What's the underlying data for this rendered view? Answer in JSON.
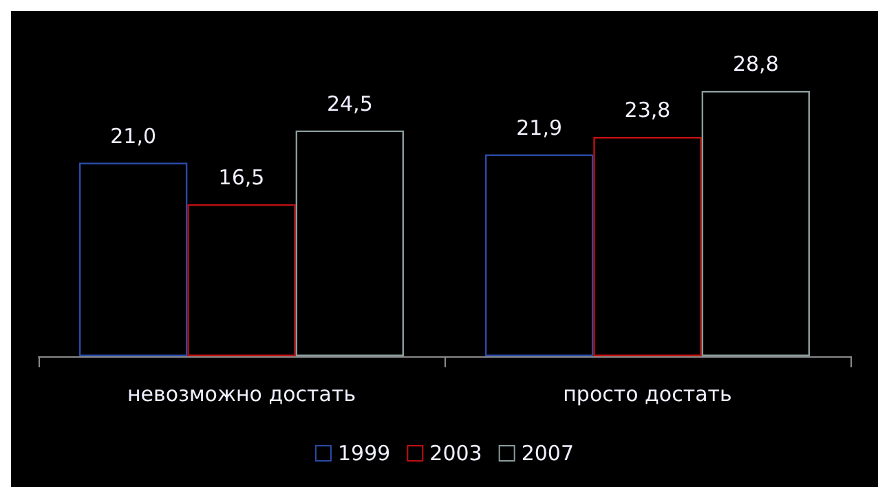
{
  "chart_data": {
    "type": "bar",
    "categories": [
      "невозможно достать",
      "просто достать"
    ],
    "series": [
      {
        "name": "1999",
        "color": "#2a4aa8",
        "values": [
          21.0,
          21.9
        ],
        "value_labels": [
          "21,0",
          "21,9"
        ]
      },
      {
        "name": "2003",
        "color": "#c01010",
        "values": [
          16.5,
          23.8
        ],
        "value_labels": [
          "16,5",
          "23,8"
        ]
      },
      {
        "name": "2007",
        "color": "#8a9c9c",
        "values": [
          24.5,
          28.8
        ],
        "value_labels": [
          "24,5",
          "28,8"
        ]
      }
    ],
    "legend": "bottom"
  }
}
